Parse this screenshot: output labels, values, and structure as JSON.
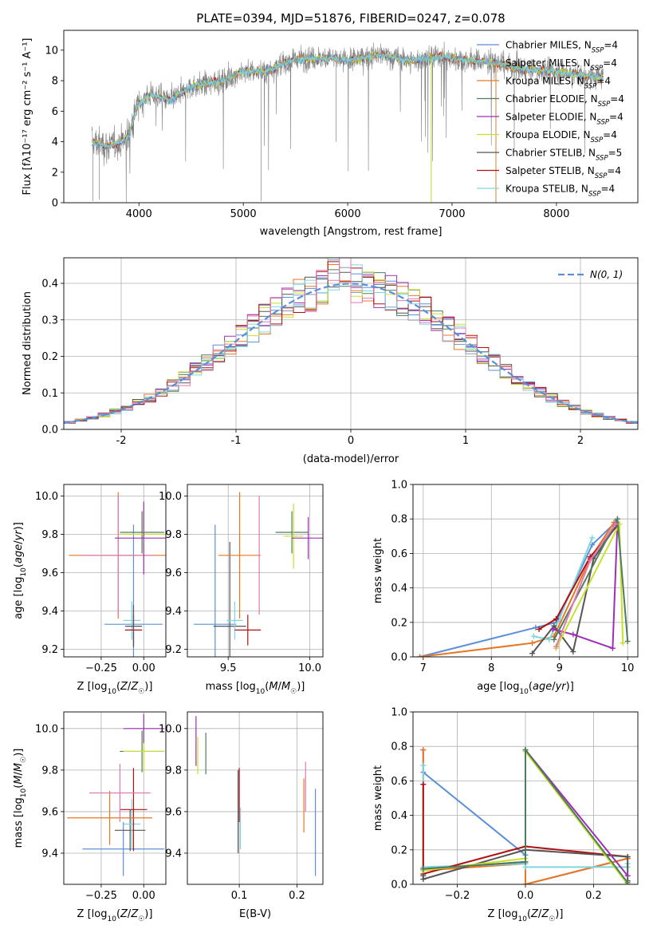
{
  "title": "PLATE=0394, MJD=51876, FIBERID=0247, z=0.078",
  "colors": {
    "chabrier_miles": "#5b8fd9",
    "salpeter_miles": "#8b9bb5",
    "kroupa_miles": "#e87722",
    "chabrier_elodie": "#4e7d5b",
    "salpeter_elodie": "#9b30b6",
    "kroupa_elodie": "#c8e02c",
    "chabrier_stelib": "#555555",
    "salpeter_stelib": "#b01010",
    "kroupa_stelib": "#7fd6e0",
    "pink": "#e07ab0",
    "spectrum": "#808080",
    "normal": "#5b8fd9"
  },
  "legend_spectrum": [
    {
      "key": "chabrier_miles",
      "text": "Chabrier MILES, N",
      "sub": "SSP",
      "suffix": "=4"
    },
    {
      "key": "salpeter_miles",
      "text": "Salpeter MILES, N",
      "sub": "SSP",
      "suffix": "=4"
    },
    {
      "key": "kroupa_miles",
      "text": "Kroupa MILES, N",
      "sub": "SSP",
      "suffix": "=4"
    },
    {
      "key": "chabrier_elodie",
      "text": "Chabrier ELODIE, N",
      "sub": "SSP",
      "suffix": "=4"
    },
    {
      "key": "salpeter_elodie",
      "text": "Salpeter ELODIE, N",
      "sub": "SSP",
      "suffix": "=4"
    },
    {
      "key": "kroupa_elodie",
      "text": "Kroupa ELODIE, N",
      "sub": "SSP",
      "suffix": "=4"
    },
    {
      "key": "chabrier_stelib",
      "text": "Chabrier STELIB, N",
      "sub": "SSP",
      "suffix": "=5"
    },
    {
      "key": "salpeter_stelib",
      "text": "Salpeter STELIB, N",
      "sub": "SSP",
      "suffix": "=4"
    },
    {
      "key": "kroupa_stelib",
      "text": "Kroupa STELIB, N",
      "sub": "SSP",
      "suffix": "=4"
    }
  ],
  "chart_data": [
    {
      "id": "spectrum",
      "type": "line",
      "xlabel": "wavelength [Angstrom, rest frame]",
      "ylabel": "Flux [fλ10⁻¹⁷ erg cm⁻² s⁻¹ A⁻¹]",
      "xlim": [
        3280,
        8780
      ],
      "ylim": [
        0,
        11.3
      ],
      "xticks": [
        4000,
        5000,
        6000,
        7000,
        8000
      ],
      "yticks": [
        0,
        2,
        4,
        6,
        8,
        10
      ],
      "continuum": [
        [
          3550,
          4.0
        ],
        [
          3700,
          3.7
        ],
        [
          3800,
          3.9
        ],
        [
          3900,
          4.3
        ],
        [
          3980,
          6.3
        ],
        [
          4100,
          7.1
        ],
        [
          4300,
          6.7
        ],
        [
          4500,
          7.6
        ],
        [
          4800,
          8.0
        ],
        [
          5000,
          8.6
        ],
        [
          5200,
          8.6
        ],
        [
          5500,
          9.4
        ],
        [
          5800,
          9.5
        ],
        [
          6000,
          9.3
        ],
        [
          6300,
          9.7
        ],
        [
          6600,
          9.3
        ],
        [
          6900,
          9.6
        ],
        [
          7200,
          9.3
        ],
        [
          7400,
          9.2
        ],
        [
          7700,
          8.7
        ],
        [
          8000,
          8.6
        ],
        [
          8400,
          8.2
        ]
      ],
      "data_range": [
        3550,
        8450
      ],
      "model_cutoffs": [
        {
          "x": 6800,
          "color_key": "kroupa_elodie"
        },
        {
          "x": 7420,
          "color_key": "kroupa_miles"
        }
      ]
    },
    {
      "id": "residuals",
      "type": "bar",
      "xlabel": "(data-model)/error",
      "ylabel": "Normed distribution",
      "xlim": [
        -2.5,
        2.5
      ],
      "ylim": [
        0,
        0.47
      ],
      "xticks": [
        -2,
        -1,
        0,
        1,
        2
      ],
      "ytick_labels": [
        "0.0",
        "0.1",
        "0.2",
        "0.3",
        "0.4"
      ],
      "yticks": [
        0,
        0.1,
        0.2,
        0.3,
        0.4
      ],
      "legend": "N(0, 1)",
      "bin_width": 0.1,
      "normal_mean": 0,
      "normal_sigma": 1
    },
    {
      "id": "age_vs_Z",
      "type": "scatter",
      "xlabel": "Z [log10(Z/Z☉)]",
      "ylabel": "age [log10(age/yr)]",
      "xlim": [
        -0.47,
        0.13
      ],
      "ylim": [
        9.16,
        10.06
      ],
      "xticks": [
        -0.25,
        0.0
      ],
      "xtick_labels": [
        "−0.25",
        "0.00"
      ],
      "yticks": [
        9.2,
        9.4,
        9.6,
        9.8,
        10.0
      ],
      "ytick_labels": [
        "9.2",
        "9.4",
        "9.6",
        "9.8",
        "10.0"
      ],
      "points": [
        {
          "key": "chabrier_miles",
          "x": -0.06,
          "y": 9.33,
          "xerr": 0.17,
          "yerr": 0.52
        },
        {
          "key": "kroupa_stelib",
          "x": -0.07,
          "y": 9.35,
          "xerr": 0.05,
          "yerr": 0.1
        },
        {
          "key": "salpeter_stelib",
          "x": -0.06,
          "y": 9.3,
          "xerr": 0.05,
          "yerr": 0.08
        },
        {
          "key": "chabrier_stelib",
          "x": -0.06,
          "y": 9.32,
          "xerr": 0.05,
          "yerr": 0.11
        },
        {
          "key": "kroupa_miles",
          "x": -0.15,
          "y": 9.69,
          "xerr": 0.29,
          "yerr": 0.33
        },
        {
          "key": "pink",
          "x": -0.15,
          "y": 9.69,
          "xerr": 0.22,
          "yerr": 0.31
        },
        {
          "key": "chabrier_elodie",
          "x": -0.01,
          "y": 9.81,
          "xerr": 0.13,
          "yerr": 0.11
        },
        {
          "key": "kroupa_elodie",
          "x": 0.0,
          "y": 9.8,
          "xerr": 0.14,
          "yerr": 0.13
        },
        {
          "key": "salpeter_elodie",
          "x": -0.0,
          "y": 9.78,
          "xerr": 0.17,
          "yerr": 0.19
        }
      ]
    },
    {
      "id": "age_vs_mass",
      "type": "scatter",
      "xlabel": "mass [log10(M/M☉)]",
      "ylabel": "",
      "xlim": [
        9.25,
        10.08
      ],
      "ylim": [
        9.16,
        10.06
      ],
      "xticks": [
        9.5,
        10.0
      ],
      "xtick_labels": [
        "9.5",
        "10.0"
      ],
      "yticks": [
        9.2,
        9.4,
        9.6,
        9.8,
        10.0
      ],
      "ytick_labels": [
        "9.2",
        "9.4",
        "9.6",
        "9.8",
        "10.0"
      ],
      "points": [
        {
          "key": "chabrier_miles",
          "x": 9.42,
          "y": 9.33,
          "xerr": 0.13,
          "yerr": 0.52
        },
        {
          "key": "chabrier_stelib",
          "x": 9.51,
          "y": 9.32,
          "xerr": 0.1,
          "yerr": 0.44
        },
        {
          "key": "kroupa_stelib",
          "x": 9.54,
          "y": 9.35,
          "xerr": 0.05,
          "yerr": 0.1
        },
        {
          "key": "salpeter_stelib",
          "x": 9.62,
          "y": 9.3,
          "xerr": 0.08,
          "yerr": 0.08
        },
        {
          "key": "kroupa_miles",
          "x": 9.57,
          "y": 9.69,
          "xerr": 0.13,
          "yerr": 0.33
        },
        {
          "key": "pink",
          "x": 9.69,
          "y": 9.69,
          "xerr": 0.0,
          "yerr": 0.31
        },
        {
          "key": "chabrier_elodie",
          "x": 9.89,
          "y": 9.81,
          "xerr": 0.1,
          "yerr": 0.11
        },
        {
          "key": "kroupa_elodie",
          "x": 9.9,
          "y": 9.79,
          "xerr": 0.06,
          "yerr": 0.17
        },
        {
          "key": "salpeter_elodie",
          "x": 9.99,
          "y": 9.78,
          "xerr": 0.1,
          "yerr": 0.11
        }
      ]
    },
    {
      "id": "mass_weight_vs_age",
      "type": "line",
      "xlabel": "age [log10(age/yr)]",
      "ylabel": "mass weight",
      "xlim": [
        6.85,
        10.15
      ],
      "ylim": [
        0,
        1.0
      ],
      "xticks": [
        7,
        8,
        9,
        10
      ],
      "yticks": [
        0,
        0.2,
        0.4,
        0.6,
        0.8,
        1.0
      ],
      "ytick_labels": [
        "0.0",
        "0.2",
        "0.4",
        "0.6",
        "0.8",
        "1.0"
      ],
      "series": [
        {
          "key": "chabrier_miles",
          "x": [
            6.95,
            8.65,
            8.95,
            9.48,
            9.82
          ],
          "y": [
            0.0,
            0.17,
            0.2,
            0.65,
            0.78
          ]
        },
        {
          "key": "kroupa_miles",
          "x": [
            6.95,
            8.6,
            8.92,
            9.45,
            9.8
          ],
          "y": [
            0.0,
            0.08,
            0.12,
            0.57,
            0.78
          ]
        },
        {
          "key": "kroupa_stelib",
          "x": [
            8.62,
            8.85,
            9.0,
            9.48
          ],
          "y": [
            0.12,
            0.1,
            0.22,
            0.69
          ]
        },
        {
          "key": "salpeter_stelib",
          "x": [
            8.7,
            8.95,
            9.45,
            9.85
          ],
          "y": [
            0.16,
            0.22,
            0.58,
            0.76
          ]
        },
        {
          "key": "chabrier_stelib",
          "x": [
            8.6,
            8.92,
            9.2,
            9.5,
            9.85
          ],
          "y": [
            0.02,
            0.18,
            0.03,
            0.57,
            0.77
          ]
        },
        {
          "key": "salpeter_elodie",
          "x": [
            8.9,
            9.2,
            9.78,
            9.85
          ],
          "y": [
            0.16,
            0.13,
            0.05,
            0.78
          ]
        },
        {
          "key": "kroupa_elodie",
          "x": [
            8.95,
            9.88,
            9.93
          ],
          "y": [
            0.05,
            0.77,
            0.08
          ]
        },
        {
          "key": "chabrier_elodie",
          "x": [
            8.92,
            9.85,
            10.0
          ],
          "y": [
            0.1,
            0.8,
            0.09
          ]
        },
        {
          "key": "pink",
          "x": [
            8.95,
            9.45,
            9.82
          ],
          "y": [
            0.06,
            0.56,
            0.77
          ]
        }
      ]
    },
    {
      "id": "mass_vs_Z",
      "type": "scatter",
      "xlabel": "Z [log10(Z/Z☉)]",
      "ylabel": "mass [log10(M/M☉)]",
      "xlim": [
        -0.47,
        0.13
      ],
      "ylim": [
        9.25,
        10.08
      ],
      "xticks": [
        -0.25,
        0.0
      ],
      "xtick_labels": [
        "−0.25",
        "0.00"
      ],
      "yticks": [
        9.4,
        9.6,
        9.8,
        10.0
      ],
      "ytick_labels": [
        "9.4",
        "9.6",
        "9.8",
        "10.0"
      ],
      "points": [
        {
          "key": "chabrier_miles",
          "x": -0.12,
          "y": 9.42,
          "xerr": 0.24,
          "yerr": 0.13
        },
        {
          "key": "chabrier_stelib",
          "x": -0.08,
          "y": 9.51,
          "xerr": 0.09,
          "yerr": 0.1
        },
        {
          "key": "kroupa_stelib",
          "x": -0.07,
          "y": 9.54,
          "xerr": 0.05,
          "yerr": 0.12
        },
        {
          "key": "salpeter_stelib",
          "x": -0.06,
          "y": 9.61,
          "xerr": 0.08,
          "yerr": 0.2
        },
        {
          "key": "kroupa_miles",
          "x": -0.2,
          "y": 9.57,
          "xerr": 0.25,
          "yerr": 0.13
        },
        {
          "key": "pink",
          "x": -0.14,
          "y": 9.69,
          "xerr": 0.18,
          "yerr": 0.14
        },
        {
          "key": "chabrier_elodie",
          "x": -0.01,
          "y": 9.89,
          "xerr": 0.13,
          "yerr": 0.1
        },
        {
          "key": "kroupa_elodie",
          "x": 0.0,
          "y": 9.89,
          "xerr": 0.12,
          "yerr": 0.1
        },
        {
          "key": "salpeter_elodie",
          "x": -0.0,
          "y": 10.0,
          "xerr": 0.12,
          "yerr": 0.07
        }
      ]
    },
    {
      "id": "mass_vs_ebv",
      "type": "scatter",
      "xlabel": "E(B-V)",
      "ylabel": "",
      "xlim": [
        0.01,
        0.245
      ],
      "ylim": [
        9.25,
        10.08
      ],
      "xticks": [
        0.1,
        0.2
      ],
      "xtick_labels": [
        "0.1",
        "0.2"
      ],
      "yticks": [
        9.4,
        9.6,
        9.8,
        10.0
      ],
      "ytick_labels": [
        "9.4",
        "9.6",
        "9.8",
        "10.0"
      ],
      "points": [
        {
          "key": "salpeter_elodie",
          "x": 0.025,
          "y": 9.94,
          "xerr": 0,
          "yerr": 0.12
        },
        {
          "key": "kroupa_elodie",
          "x": 0.028,
          "y": 9.87,
          "xerr": 0,
          "yerr": 0.09
        },
        {
          "key": "chabrier_elodie",
          "x": 0.042,
          "y": 9.88,
          "xerr": 0,
          "yerr": 0.1
        },
        {
          "key": "chabrier_stelib",
          "x": 0.098,
          "y": 9.6,
          "xerr": 0,
          "yerr": 0.2
        },
        {
          "key": "salpeter_stelib",
          "x": 0.1,
          "y": 9.68,
          "xerr": 0,
          "yerr": 0.13
        },
        {
          "key": "kroupa_stelib",
          "x": 0.102,
          "y": 9.52,
          "xerr": 0,
          "yerr": 0.1
        },
        {
          "key": "kroupa_miles",
          "x": 0.212,
          "y": 9.63,
          "xerr": 0,
          "yerr": 0.13
        },
        {
          "key": "pink",
          "x": 0.215,
          "y": 9.72,
          "xerr": 0,
          "yerr": 0.12
        },
        {
          "key": "chabrier_miles",
          "x": 0.232,
          "y": 9.5,
          "xerr": 0,
          "yerr": 0.21
        }
      ]
    },
    {
      "id": "mass_weight_vs_Z",
      "type": "line",
      "xlabel": "Z [log10(Z/Z☉)]",
      "ylabel": "mass weight",
      "xlim": [
        -0.33,
        0.33
      ],
      "ylim": [
        0,
        1.0
      ],
      "xticks": [
        -0.2,
        0.0,
        0.2
      ],
      "xtick_labels": [
        "−0.2",
        "0.0",
        "0.2"
      ],
      "yticks": [
        0,
        0.2,
        0.4,
        0.6,
        0.8,
        1.0
      ],
      "ytick_labels": [
        "0.0",
        "0.2",
        "0.4",
        "0.6",
        "0.8",
        "1.0"
      ],
      "series": [
        {
          "key": "chabrier_miles",
          "x": [
            -0.3,
            -0.3,
            0.0,
            0.0,
            0.3
          ],
          "y": [
            0.78,
            0.65,
            0.17,
            0.0,
            0.15
          ]
        },
        {
          "key": "kroupa_miles",
          "x": [
            -0.3,
            -0.3,
            0.0,
            0.0,
            0.3
          ],
          "y": [
            0.78,
            0.08,
            0.12,
            0.0,
            0.15
          ]
        },
        {
          "key": "kroupa_stelib",
          "x": [
            -0.3,
            -0.3,
            0.0,
            0.0,
            0.3,
            0.3
          ],
          "y": [
            0.69,
            0.1,
            0.12,
            0.1,
            0.1,
            0.12
          ]
        },
        {
          "key": "salpeter_stelib",
          "x": [
            -0.3,
            -0.3,
            0.0,
            0.3
          ],
          "y": [
            0.58,
            0.06,
            0.22,
            0.16
          ]
        },
        {
          "key": "chabrier_stelib",
          "x": [
            -0.3,
            -0.3,
            0.0,
            0.3,
            0.3
          ],
          "y": [
            0.05,
            0.03,
            0.2,
            0.16,
            0.02
          ]
        },
        {
          "key": "salpeter_elodie",
          "x": [
            -0.3,
            0.0,
            0.0,
            0.3
          ],
          "y": [
            0.09,
            0.13,
            0.78,
            0.05
          ]
        },
        {
          "key": "kroupa_elodie",
          "x": [
            -0.3,
            0.0,
            0.0,
            0.3
          ],
          "y": [
            0.08,
            0.15,
            0.77,
            0.0
          ]
        },
        {
          "key": "chabrier_elodie",
          "x": [
            -0.3,
            0.0,
            0.0,
            0.3
          ],
          "y": [
            0.09,
            0.13,
            0.78,
            0.01
          ]
        }
      ]
    }
  ]
}
